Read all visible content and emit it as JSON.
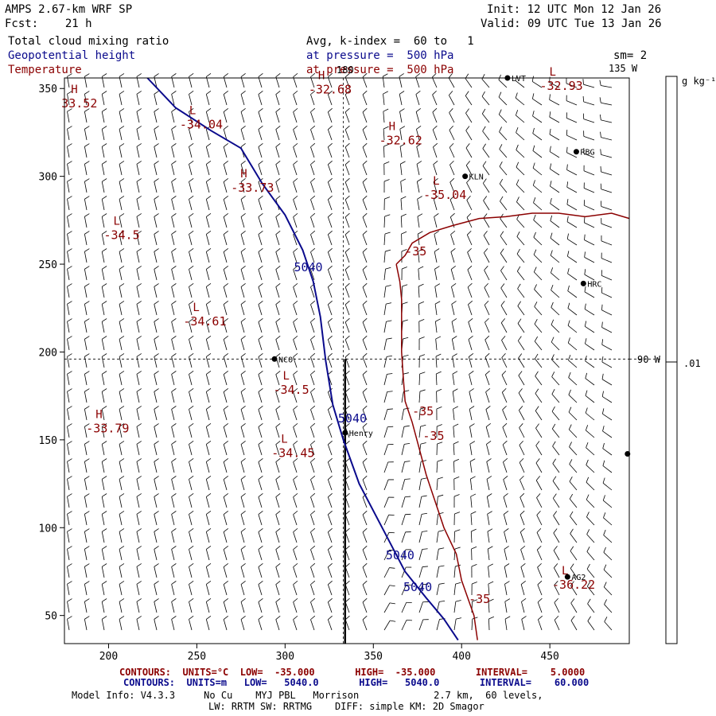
{
  "header": {
    "title": "AMPS 2.67-km WRF SP",
    "forecast": "Fcst:    21 h",
    "init": "Init: 12 UTC Mon 12 Jan 26",
    "valid": "Valid: 09 UTC Tue 13 Jan 26",
    "field1": "Total cloud mixing ratio",
    "field2": "Geopotential height",
    "field3": "Temperature",
    "level1": "Avg, k-index =  60 to   1",
    "level2": "at pressure =  500 hPa",
    "level3": "at pressure =  500 hPa",
    "smoothing": "sm= 2",
    "lon_label_135": "135 W",
    "lon_label_90": "90 W",
    "lon_label_180": "180"
  },
  "colorbar": {
    "units": "g kg⁻¹",
    "tick_label": ".01"
  },
  "footer": {
    "red_contours": "CONTOURS:  UNITS=°C  LOW=  -35.000       HIGH=  -35.000       INTERVAL=    5.0000",
    "blue_contours": "CONTOURS:  UNITS=m   LOW=   5040.0       HIGH=   5040.0       INTERVAL=    60.000",
    "model_info_1": "Model Info: V4.3.3     No Cu    MYJ PBL   Morrison             2.7 km,  60 levels,",
    "model_info_2": "LW: RRTM SW: RRTMG    DIFF: simple KM: 2D Smagor"
  },
  "colors": {
    "height_contour": "#0a0a8c",
    "temp_contour": "#8b0000",
    "barbs": "#000000",
    "frame": "#000000"
  },
  "chart_data": {
    "type": "map-contour",
    "xlim": [
      175,
      495
    ],
    "ylim": [
      34,
      356
    ],
    "x_ticks": [
      200,
      250,
      300,
      350,
      400,
      450
    ],
    "y_ticks": [
      50,
      100,
      150,
      200,
      250,
      300,
      350
    ],
    "height_contour_labels": [
      {
        "text": "5040",
        "x": 305,
        "y": 246
      },
      {
        "text": "5040",
        "x": 330,
        "y": 160
      },
      {
        "text": "5040",
        "x": 357,
        "y": 82
      },
      {
        "text": "5040",
        "x": 367,
        "y": 64
      }
    ],
    "height_contour_line": [
      [
        222,
        356
      ],
      [
        238,
        339
      ],
      [
        258,
        326
      ],
      [
        275,
        316
      ],
      [
        287,
        296
      ],
      [
        300,
        278
      ],
      [
        310,
        258
      ],
      [
        316,
        240
      ],
      [
        320,
        220
      ],
      [
        323,
        195
      ],
      [
        327,
        170
      ],
      [
        333,
        150
      ],
      [
        342,
        125
      ],
      [
        355,
        100
      ],
      [
        368,
        75
      ],
      [
        380,
        60
      ],
      [
        390,
        48
      ],
      [
        398,
        36
      ]
    ],
    "temp_contour_main": [
      [
        363,
        250
      ],
      [
        368,
        255
      ],
      [
        372,
        262
      ],
      [
        382,
        268
      ],
      [
        395,
        272
      ],
      [
        410,
        276
      ],
      [
        425,
        277
      ],
      [
        440,
        279
      ],
      [
        455,
        279
      ],
      [
        470,
        277
      ],
      [
        485,
        279
      ],
      [
        495,
        276
      ]
    ],
    "temp_contour_south": [
      [
        363,
        250
      ],
      [
        365,
        240
      ],
      [
        366,
        230
      ],
      [
        366,
        215
      ],
      [
        366,
        200
      ],
      [
        367,
        185
      ],
      [
        368,
        172
      ],
      [
        372,
        160
      ],
      [
        376,
        145
      ],
      [
        380,
        130
      ],
      [
        385,
        115
      ],
      [
        390,
        100
      ],
      [
        397,
        85
      ],
      [
        400,
        70
      ],
      [
        407,
        50
      ],
      [
        409,
        36
      ]
    ],
    "temp_contour_labels": [
      {
        "text": "-35",
        "x": 368,
        "y": 255
      },
      {
        "text": "-35",
        "x": 372,
        "y": 164
      },
      {
        "text": "-35",
        "x": 378,
        "y": 150
      },
      {
        "text": "-35",
        "x": 404,
        "y": 57
      }
    ],
    "pressure_centers": [
      {
        "type": "H",
        "value": "33.52",
        "x": 176,
        "y": 341
      },
      {
        "type": "L",
        "value": "-34.04",
        "x": 243,
        "y": 329
      },
      {
        "type": "H",
        "value": "-33.73",
        "x": 272,
        "y": 293
      },
      {
        "type": "L",
        "value": "-34.5",
        "x": 200,
        "y": 266
      },
      {
        "type": "L",
        "value": "-34.61",
        "x": 245,
        "y": 217
      },
      {
        "type": "L",
        "value": "-34.5",
        "x": 296,
        "y": 178
      },
      {
        "type": "H",
        "value": "-33.79",
        "x": 190,
        "y": 156
      },
      {
        "type": "L",
        "value": "-34.45",
        "x": 295,
        "y": 142
      },
      {
        "type": "H",
        "value": "-32.68",
        "x": 316,
        "y": 349
      },
      {
        "type": "H",
        "value": "-32.62",
        "x": 356,
        "y": 320
      },
      {
        "type": "L",
        "value": "-35.04",
        "x": 381,
        "y": 289
      },
      {
        "type": "L",
        "value": "-32.93",
        "x": 447,
        "y": 351
      },
      {
        "type": "L",
        "value": "-36.22",
        "x": 454,
        "y": 67
      }
    ],
    "stations": [
      {
        "name": "LVT",
        "x": 426,
        "y": 356
      },
      {
        "name": "RBG",
        "x": 465,
        "y": 314
      },
      {
        "name": "KLN",
        "x": 402,
        "y": 300
      },
      {
        "name": "HRC",
        "x": 469,
        "y": 239
      },
      {
        "name": "NCO",
        "x": 294,
        "y": 196
      },
      {
        "name": "Henry",
        "x": 334,
        "y": 154
      },
      {
        "name": "AG2",
        "x": 460,
        "y": 72
      },
      {
        "name": "",
        "x": 494,
        "y": 142
      }
    ],
    "meridian_x": 333,
    "parallel_y": 196,
    "cross_section_x": 334,
    "cross_section_y": [
      34,
      196
    ]
  }
}
